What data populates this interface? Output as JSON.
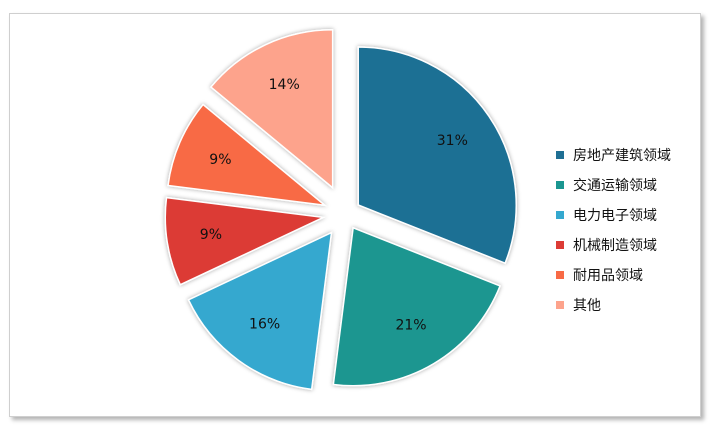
{
  "chart_data": {
    "type": "pie",
    "exploded": true,
    "categories": [
      "房地产建筑领域",
      "交通运输领域",
      "电力电子领域",
      "机械制造领域",
      "耐用品领域",
      "其他"
    ],
    "values": [
      31,
      21,
      16,
      9,
      9,
      14
    ],
    "data_labels": [
      "31%",
      "21%",
      "16%",
      "9%",
      "9%",
      "14%"
    ],
    "colors": [
      "#1f6f94",
      "#1a9690",
      "#34a8cf",
      "#dc3b35",
      "#f86a45",
      "#fda38c"
    ],
    "legend_placement": "right",
    "title": ""
  }
}
